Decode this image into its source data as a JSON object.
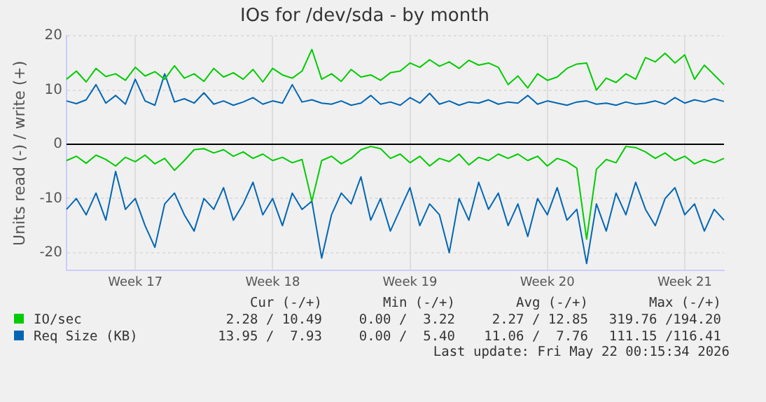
{
  "chart_data": {
    "type": "line",
    "title": "IOs for /dev/sda - by month",
    "ylabel": "Units read (-) / write (+)",
    "categories": [
      null,
      null,
      null,
      null,
      null,
      null,
      null,
      "Week 17",
      null,
      null,
      null,
      null,
      null,
      null,
      null,
      null,
      null,
      null,
      null,
      null,
      null,
      "Week 18",
      null,
      null,
      null,
      null,
      null,
      null,
      null,
      null,
      null,
      null,
      null,
      null,
      null,
      "Week 19",
      null,
      null,
      null,
      null,
      null,
      null,
      null,
      null,
      null,
      null,
      null,
      null,
      null,
      "Week 20",
      null,
      null,
      null,
      null,
      null,
      null,
      null,
      null,
      null,
      null,
      null,
      null,
      null,
      "Week 21",
      null,
      null,
      null,
      null
    ],
    "series": [
      {
        "name": "IO/sec",
        "color": "#00cc00",
        "values": [
          12,
          13.5,
          11.5,
          14,
          12.5,
          13,
          11.8,
          14.2,
          12.6,
          13.4,
          12,
          14.5,
          12.2,
          13,
          11.6,
          14,
          12.4,
          13.2,
          12,
          13.8,
          11.5,
          14,
          12.8,
          12.2,
          13.5,
          17.5,
          12,
          13,
          11.6,
          13.8,
          12.4,
          12.8,
          11.8,
          13.2,
          13.5,
          15,
          14.2,
          15.6,
          14.4,
          15.2,
          14,
          15.5,
          14.6,
          15,
          14.2,
          11,
          12.6,
          10.4,
          13,
          11.8,
          12.4,
          14,
          14.8,
          15,
          10,
          12.2,
          11.4,
          13,
          12,
          16,
          15.2,
          16.8,
          15,
          16.5,
          12,
          14.6,
          12.8,
          11
        ]
      },
      {
        "color": "#00cc00",
        "values": [
          -3,
          -2.2,
          -3.5,
          -2,
          -2.8,
          -4,
          -2.4,
          -3.2,
          -2,
          -3.6,
          -2.6,
          -4.8,
          -3,
          -1,
          -0.8,
          -1.6,
          -1,
          -2.2,
          -1.4,
          -2.6,
          -1.8,
          -3,
          -2.4,
          -3.4,
          -2.8,
          -10.5,
          -3,
          -2.2,
          -3.6,
          -2.6,
          -1,
          -0.4,
          -0.8,
          -2.6,
          -1.8,
          -3.4,
          -2.2,
          -4,
          -2.6,
          -3.2,
          -1.8,
          -3.8,
          -2.4,
          -3,
          -1.8,
          -2.6,
          -1.8,
          -3,
          -2.2,
          -4,
          -2.6,
          -3.2,
          -4.4,
          -17.5,
          -4.6,
          -2.8,
          -3.4,
          -0.4,
          -0.6,
          -1.4,
          -2.6,
          -1.6,
          -3,
          -2.2,
          -3.6,
          -2.8,
          -3.4,
          -2.6
        ]
      },
      {
        "name": "Req Size (KB)",
        "color": "#0066b3",
        "values": [
          8,
          7.5,
          8.2,
          11,
          7.6,
          9,
          7.4,
          12,
          8,
          7.2,
          13,
          7.8,
          8.4,
          7.6,
          9.5,
          7.4,
          8,
          7.2,
          7.8,
          8.6,
          7.4,
          8,
          7.6,
          11,
          7.8,
          8.2,
          7.6,
          7.4,
          8,
          7.2,
          7.6,
          9,
          7.4,
          7.8,
          7.2,
          8.6,
          7.6,
          9.4,
          7.4,
          8,
          7.2,
          7.8,
          7.6,
          8.2,
          7.4,
          7.8,
          7.6,
          9,
          7.4,
          8,
          7.6,
          7.2,
          7.8,
          8,
          7.4,
          7.6,
          7.2,
          7.8,
          7.4,
          7.6,
          8,
          7.4,
          8.6,
          7.6,
          8.2,
          7.8,
          8.4,
          7.9
        ]
      },
      {
        "color": "#0066b3",
        "values": [
          -12,
          -10,
          -13,
          -9,
          -14,
          -5,
          -12,
          -10,
          -15,
          -19,
          -11,
          -9,
          -13,
          -16,
          -10,
          -12,
          -8,
          -14,
          -11,
          -7,
          -13,
          -10,
          -15,
          -9,
          -12,
          -10.5,
          -21,
          -13,
          -9,
          -11,
          -6,
          -14,
          -10,
          -16,
          -12,
          -8,
          -15,
          -11,
          -13,
          -20,
          -10,
          -14,
          -7,
          -12,
          -9,
          -15,
          -11,
          -17,
          -10,
          -13,
          -8,
          -14,
          -12,
          -22,
          -11,
          -16,
          -9,
          -13,
          -7,
          -12,
          -15,
          -10,
          -8,
          -13,
          -11,
          -16,
          -12,
          -14
        ]
      }
    ],
    "ylim": [
      -23.3,
      20
    ],
    "yticks": [
      -20,
      -10,
      0,
      10,
      20
    ],
    "ref_lines": [
      {
        "axis": "y",
        "value": 0,
        "color": "#000000"
      }
    ],
    "grid": true,
    "legend": "bottom",
    "marker": "none",
    "line_style": "solid",
    "annotations": [
      "Cur (-/+)",
      "Min (-/+)",
      "Avg (-/+)",
      "Max (-/+)",
      "2.28 / 10.49",
      "0.00 /  3.22",
      "2.27 / 12.85",
      "319.76 /194.20",
      "13.95 /  7.93",
      "0.00 /  5.40",
      "11.06 /  7.76",
      "111.15 /116.41",
      "Last update: Fri May 22 00:15:34 2026"
    ]
  }
}
